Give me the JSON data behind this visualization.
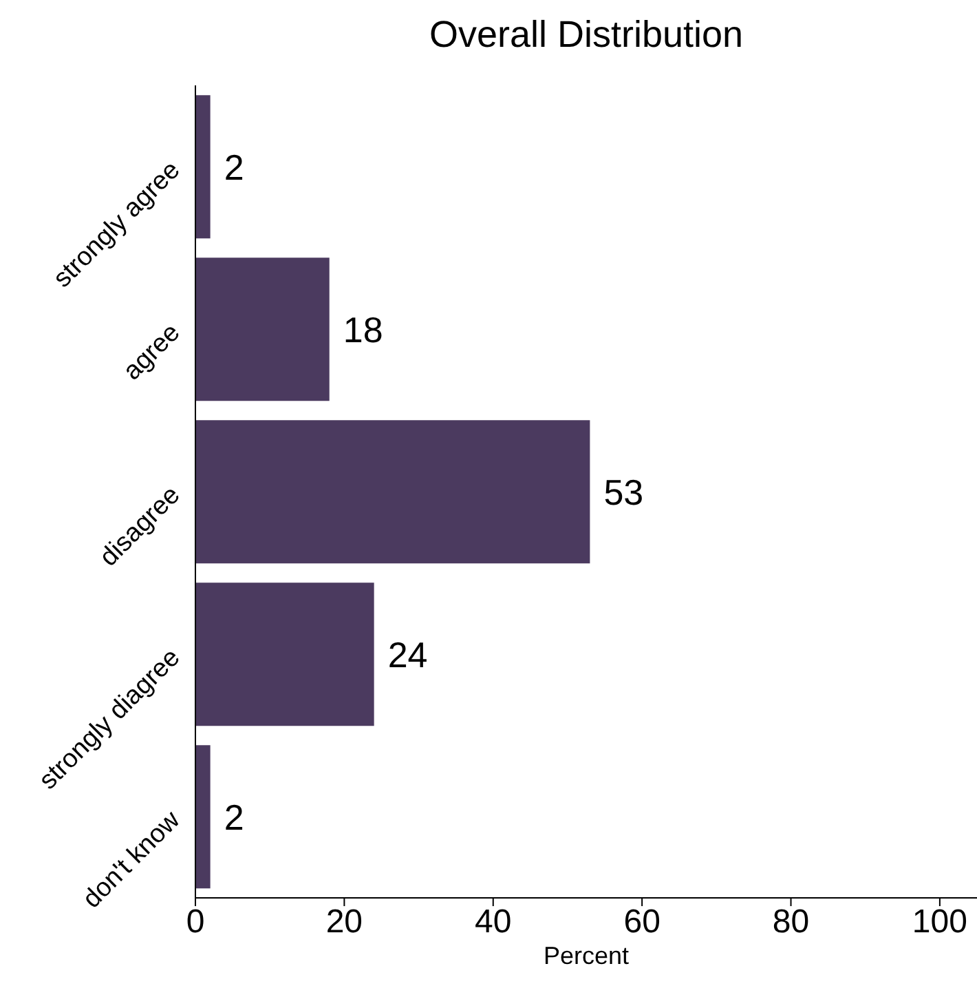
{
  "chart_data": {
    "type": "bar",
    "orientation": "horizontal",
    "title": "Overall Distribution",
    "xlabel": "Percent",
    "categories": [
      "strongly agree",
      "agree",
      "disagree",
      "strongly diagree",
      "don't know"
    ],
    "values": [
      2,
      18,
      53,
      24,
      2
    ],
    "color": "#4b3a5f",
    "xlim": [
      0,
      105
    ],
    "xticks": [
      0,
      20,
      40,
      60,
      80,
      100
    ],
    "data_labels": true,
    "grid": false,
    "legend": false
  }
}
